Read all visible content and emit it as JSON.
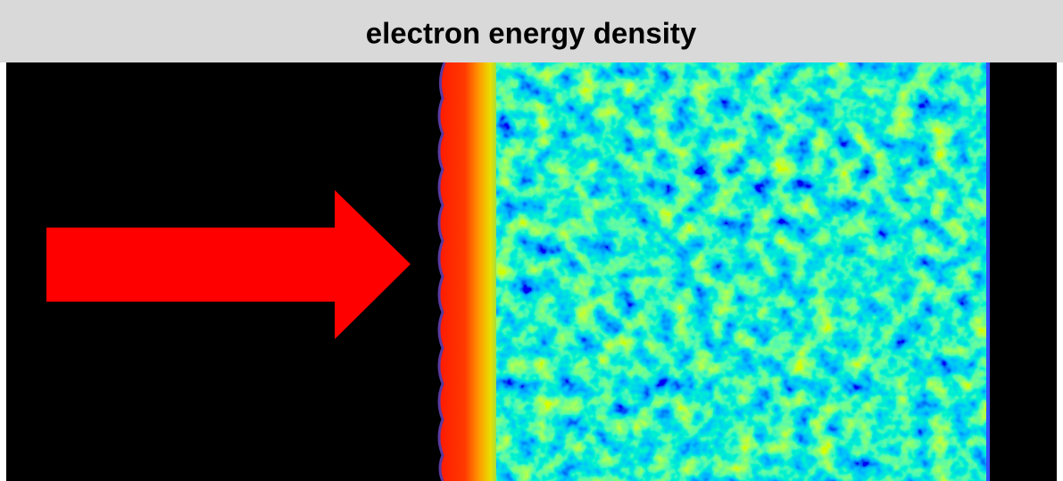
{
  "header": {
    "title": "electron energy density"
  }
}
